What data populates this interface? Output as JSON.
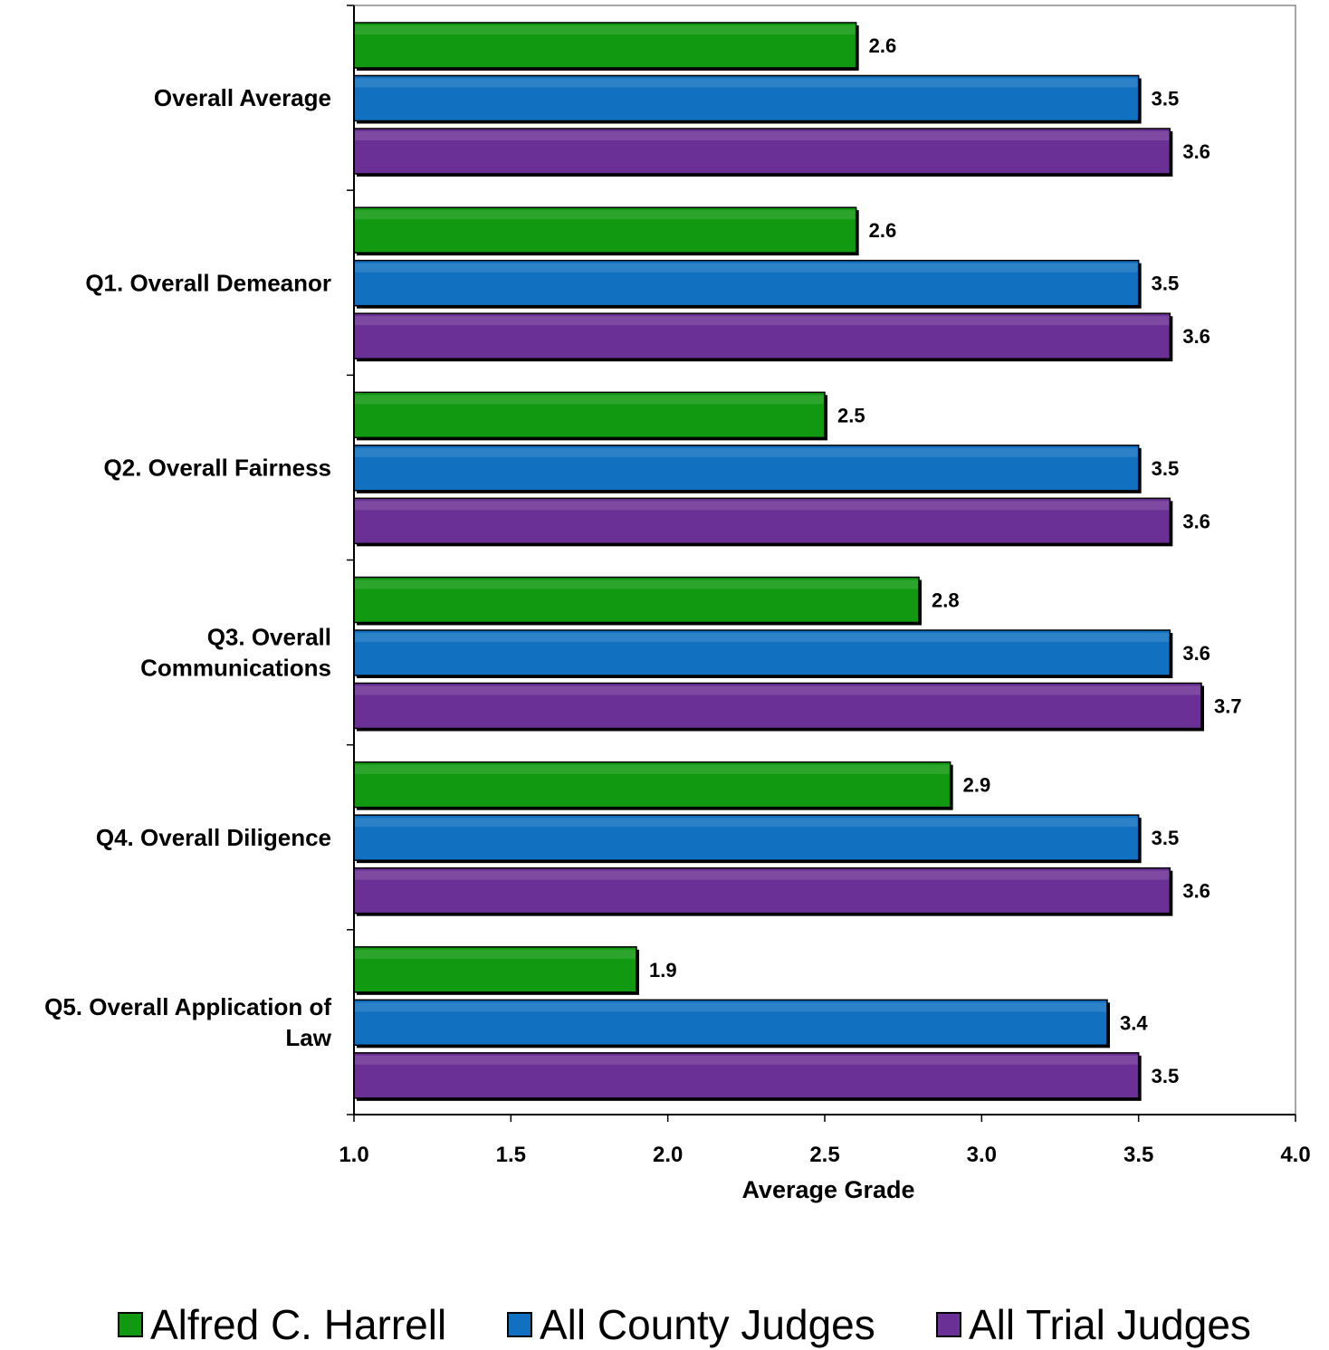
{
  "chart_data": {
    "type": "bar",
    "orientation": "horizontal",
    "categories": [
      [
        "Overall Average"
      ],
      [
        "Q1. Overall Demeanor"
      ],
      [
        "Q2. Overall Fairness"
      ],
      [
        "Q3. Overall",
        "Communications"
      ],
      [
        "Q4. Overall Diligence"
      ],
      [
        "Q5. Overall Application of",
        "Law"
      ]
    ],
    "series": [
      {
        "name": "Alfred C. Harrell",
        "color": "#119911",
        "values": [
          2.6,
          2.6,
          2.5,
          2.8,
          2.9,
          1.9
        ],
        "labels": [
          "2.6",
          "2.6",
          "2.5",
          "2.8",
          "2.9",
          "1.9"
        ]
      },
      {
        "name": "All County Judges",
        "color": "#1170C0",
        "values": [
          3.5,
          3.5,
          3.5,
          3.6,
          3.5,
          3.4
        ],
        "labels": [
          "3.5",
          "3.5",
          "3.5",
          "3.6",
          "3.5",
          "3.4"
        ]
      },
      {
        "name": "All Trial Judges",
        "color": "#6B3095",
        "values": [
          3.6,
          3.6,
          3.6,
          3.7,
          3.6,
          3.5
        ],
        "labels": [
          "3.6",
          "3.6",
          "3.6",
          "3.7",
          "3.6",
          "3.5"
        ]
      }
    ],
    "xlim": [
      1.0,
      4.0
    ],
    "xticks": [
      "1.0",
      "1.5",
      "2.0",
      "2.5",
      "3.0",
      "3.5",
      "4.0"
    ],
    "xlabel": "Average Grade",
    "legend_position": "bottom",
    "grid": false
  }
}
